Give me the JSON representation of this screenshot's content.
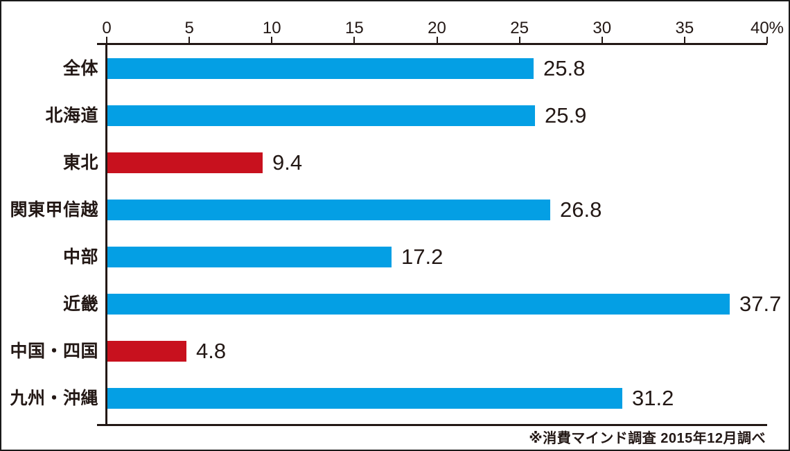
{
  "chart_data": {
    "type": "bar",
    "orientation": "horizontal",
    "categories": [
      "全体",
      "北海道",
      "東北",
      "関東甲信越",
      "中部",
      "近畿",
      "中国・四国",
      "九州・沖縄"
    ],
    "values": [
      25.8,
      25.9,
      9.4,
      26.8,
      17.2,
      37.7,
      4.8,
      31.2
    ],
    "value_labels": [
      "25.8",
      "25.9",
      "9.4",
      "26.8",
      "17.2",
      "37.7",
      "4.8",
      "31.2"
    ],
    "bar_color_keys": [
      "blue",
      "blue",
      "red",
      "blue",
      "blue",
      "blue",
      "red",
      "blue"
    ],
    "colors": {
      "blue": "#049FE4",
      "red": "#C8111E",
      "axis": "#231815",
      "text": "#231815"
    },
    "xlim": [
      0,
      40
    ],
    "x_axis_position": "top",
    "x_tick_values": [
      0,
      5,
      10,
      15,
      20,
      25,
      30,
      35,
      40
    ],
    "x_tick_labels": [
      "0",
      "5",
      "10",
      "15",
      "20",
      "25",
      "30",
      "35",
      "40%"
    ],
    "grid": false,
    "legend": false,
    "source_note": "※消費マインド調査 2015年12月調べ"
  }
}
